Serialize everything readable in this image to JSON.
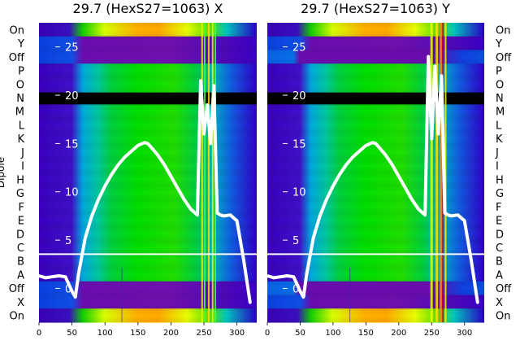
{
  "chart_data": [
    {
      "type": "heatmap",
      "title": "29.7 (HexS27=1063) X",
      "ylabel": "Dipole",
      "row_labels": [
        "On",
        "Y",
        "Off",
        "P",
        "O",
        "N",
        "M",
        "L",
        "K",
        "J",
        "I",
        "H",
        "G",
        "F",
        "E",
        "D",
        "C",
        "B",
        "A",
        "Off",
        "X",
        "On"
      ],
      "xlim": [
        0,
        330
      ],
      "x_ticks": [
        0,
        50,
        100,
        150,
        200,
        250,
        300
      ],
      "overlay": {
        "type": "line",
        "color": "#ffffff",
        "ylim": [
          -3.5,
          27.5
        ],
        "y_ticks": [
          0,
          5,
          10,
          15,
          20,
          25
        ],
        "x": [
          0,
          10,
          20,
          30,
          40,
          50,
          55,
          60,
          70,
          80,
          90,
          100,
          110,
          120,
          130,
          140,
          150,
          160,
          165,
          170,
          180,
          190,
          200,
          210,
          220,
          230,
          240,
          245,
          250,
          255,
          260,
          265,
          270,
          275,
          280,
          290,
          300,
          310,
          320
        ],
        "y": [
          1.3,
          1.1,
          1.2,
          1.3,
          1.2,
          -0.3,
          -0.9,
          1.5,
          5.2,
          7.5,
          9.2,
          10.6,
          11.8,
          12.8,
          13.6,
          14.2,
          14.8,
          15.1,
          15.0,
          14.6,
          13.8,
          12.8,
          11.6,
          10.4,
          9.2,
          8.2,
          7.6,
          21.5,
          16.0,
          19.0,
          15.0,
          21.0,
          7.8,
          7.6,
          7.5,
          7.6,
          7.0,
          3.0,
          -1.5
        ]
      }
    },
    {
      "type": "heatmap",
      "title": "29.7 (HexS27=1063) Y",
      "ylabel": "",
      "row_labels": [
        "On",
        "Y",
        "Off",
        "P",
        "O",
        "N",
        "M",
        "L",
        "K",
        "J",
        "I",
        "H",
        "G",
        "F",
        "E",
        "D",
        "C",
        "B",
        "A",
        "Off",
        "X",
        "On"
      ],
      "xlim": [
        0,
        330
      ],
      "x_ticks": [
        0,
        50,
        100,
        150,
        200,
        250,
        300
      ],
      "overlay": {
        "type": "line",
        "color": "#ffffff",
        "ylim": [
          -3.5,
          27.5
        ],
        "y_ticks": [
          0,
          5,
          10,
          15,
          20,
          25
        ],
        "x": [
          0,
          10,
          20,
          30,
          40,
          50,
          55,
          60,
          70,
          80,
          90,
          100,
          110,
          120,
          130,
          140,
          150,
          160,
          165,
          170,
          180,
          190,
          200,
          210,
          220,
          230,
          240,
          245,
          250,
          255,
          260,
          265,
          270,
          275,
          280,
          290,
          300,
          310,
          320
        ],
        "y": [
          1.3,
          1.1,
          1.2,
          1.3,
          1.2,
          -0.3,
          -0.9,
          1.5,
          5.2,
          7.5,
          9.2,
          10.6,
          11.8,
          12.8,
          13.6,
          14.2,
          14.8,
          15.1,
          15.0,
          14.6,
          13.8,
          12.8,
          11.6,
          10.4,
          9.2,
          8.2,
          7.6,
          24.0,
          15.5,
          23.0,
          16.0,
          22.0,
          7.8,
          7.6,
          7.5,
          7.6,
          7.0,
          3.0,
          -1.5
        ]
      }
    }
  ],
  "colors": {
    "background_purple": "#6a0dad",
    "deep_blue": "#2a00c8",
    "cyan_band": "#00b4e6",
    "green": "#00e000",
    "yellow": "#e8ff00",
    "orange": "#ffa000",
    "black_band": "#000000",
    "white": "#ffffff"
  }
}
